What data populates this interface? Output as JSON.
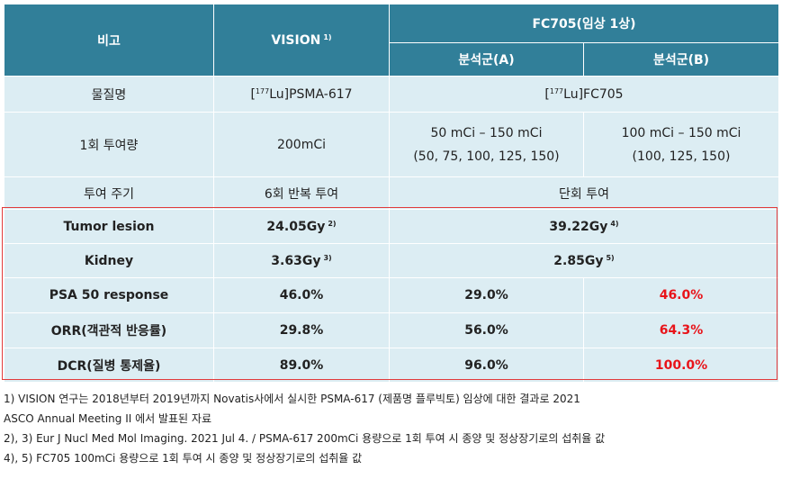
{
  "header": {
    "col_label": "비고",
    "vision": "VISION",
    "vision_sup": "1)",
    "fc705": "FC705(임상 1상)",
    "group_a": "분석군(A)",
    "group_b": "분석군(B)"
  },
  "rows": {
    "substance": {
      "label": "물질명",
      "vision_pre": "[",
      "vision_sup": "177",
      "vision_post": "Lu]PSMA-617",
      "fc_pre": "[",
      "fc_sup": "177",
      "fc_post": "Lu]FC705"
    },
    "dose": {
      "label": "1회 투여량",
      "vision": "200mCi",
      "a_line1": "50 mCi  –  150 mCi",
      "a_line2": "(50, 75, 100, 125, 150)",
      "b_line1": "100 mCi  –  150 mCi",
      "b_line2": "(100, 125, 150)"
    },
    "cycle": {
      "label": "투여 주기",
      "vision": "6회 반복 투여",
      "fc": "단회 투여"
    },
    "tumor": {
      "label": "Tumor lesion",
      "vision": "24.05Gy",
      "vision_sup": "2)",
      "fc": "39.22Gy",
      "fc_sup": "4)"
    },
    "kidney": {
      "label": "Kidney",
      "vision": "3.63Gy",
      "vision_sup": "3)",
      "fc": "2.85Gy",
      "fc_sup": "5)"
    },
    "psa": {
      "label": "PSA 50 response",
      "vision": "46.0%",
      "a": "29.0%",
      "b": "46.0%"
    },
    "orr": {
      "label": "ORR(객관적 반응률)",
      "vision": "29.8%",
      "a": "56.0%",
      "b": "64.3%"
    },
    "dcr": {
      "label": "DCR(질병 통제율)",
      "vision": "89.0%",
      "a": "96.0%",
      "b": "100.0%"
    }
  },
  "notes": [
    "1) VISION 연구는 2018년부터 2019년까지 Novatis사에서 실시한 PSMA-617 (제품명 플루빅토) 임상에 대한 결과로 2021",
    "ASCO Annual Meeting II 에서 발표된 자료",
    "2), 3) Eur J Nucl Med Mol Imaging. 2021 Jul 4. / PSMA-617 200mCi 용량으로 1회 투여 시 종양 및 정상장기로의 섭취율 값",
    "4), 5) FC705 100mCi 용량으로 1회 투여 시 종양 및 정상장기로의 섭취율 값"
  ],
  "colors": {
    "header_bg": "#317f99",
    "cell_bg": "#dcedf3",
    "highlight_text": "#e8141a",
    "highlight_border": "#e23a3a"
  }
}
